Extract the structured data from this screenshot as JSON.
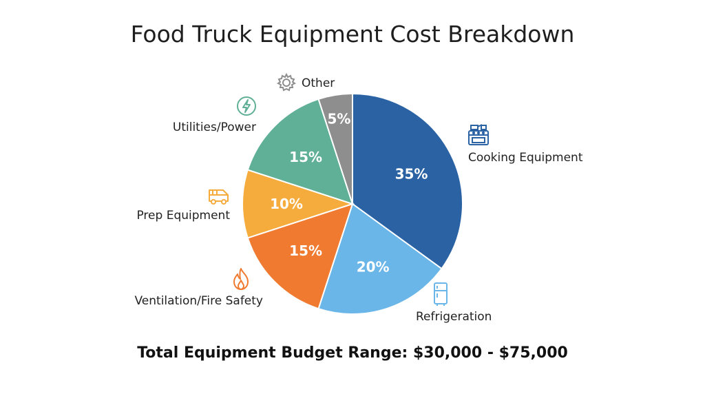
{
  "chart_data": {
    "type": "pie",
    "title": "Food Truck Equipment Cost Breakdown",
    "slices": [
      {
        "label": "Cooking Equipment",
        "value": 35,
        "value_label": "35%",
        "color": "#2a62a3",
        "icon": "stove-icon"
      },
      {
        "label": "Refrigeration",
        "value": 20,
        "value_label": "20%",
        "color": "#6bb6e8",
        "icon": "refrigerator-icon"
      },
      {
        "label": "Ventilation/Fire Safety",
        "value": 15,
        "value_label": "15%",
        "color": "#ef7a30",
        "icon": "flame-icon"
      },
      {
        "label": "Prep Equipment",
        "value": 10,
        "value_label": "10%",
        "color": "#f6ac3d",
        "icon": "van-icon"
      },
      {
        "label": "Utilities/Power",
        "value": 15,
        "value_label": "15%",
        "color": "#5fb096",
        "icon": "lightning-icon"
      },
      {
        "label": "Other",
        "value": 5,
        "value_label": "5%",
        "color": "#8e8e8e",
        "icon": "gear-icon"
      }
    ],
    "footnote": "Total Equipment Budget Range: $30,000 - $75,000"
  }
}
